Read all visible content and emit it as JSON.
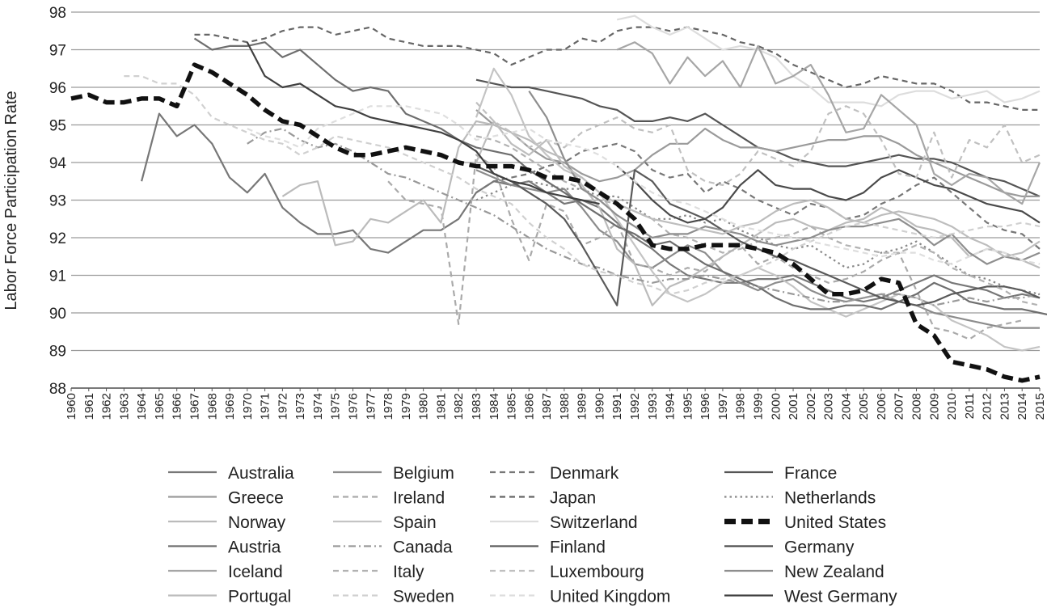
{
  "chart_data": {
    "type": "line",
    "title": "",
    "xlabel": "",
    "ylabel": "Labor Force Participation Rate",
    "xlim": [
      1960,
      2015
    ],
    "ylim": [
      88,
      98
    ],
    "y_ticks": [
      "88",
      "89",
      "90",
      "91",
      "92",
      "93",
      "94",
      "95",
      "96",
      "97",
      "98"
    ],
    "x_ticks": [
      "1960",
      "1961",
      "1962",
      "1963",
      "1964",
      "1965",
      "1966",
      "1967",
      "1968",
      "1969",
      "1970",
      "1971",
      "1972",
      "1973",
      "1974",
      "1975",
      "1976",
      "1977",
      "1978",
      "1979",
      "1980",
      "1981",
      "1982",
      "1983",
      "1984",
      "1985",
      "1986",
      "1987",
      "1988",
      "1989",
      "1990",
      "1991",
      "1992",
      "1993",
      "1994",
      "1995",
      "1996",
      "1997",
      "1998",
      "1999",
      "2000",
      "2001",
      "2002",
      "2003",
      "2004",
      "2005",
      "2006",
      "2007",
      "2008",
      "2009",
      "2010",
      "2011",
      "2012",
      "2013",
      "2014",
      "2015"
    ],
    "grid": true,
    "legend_position": "bottom",
    "series": [
      {
        "name": "Australia",
        "color": "#777777",
        "dash": "solid",
        "start": 1964,
        "values": [
          93.5,
          95.3,
          94.7,
          95.0,
          94.5,
          93.6,
          93.2,
          93.7,
          92.8,
          92.4,
          92.1,
          92.1,
          92.2,
          91.7,
          91.6,
          91.9,
          92.2,
          92.2,
          92.5,
          93.2,
          93.5,
          93.4,
          93.5,
          93.2,
          92.9,
          93.0,
          92.8,
          92.4,
          92.0,
          91.7,
          91.3,
          91.0,
          90.9,
          90.8,
          90.8,
          90.9,
          90.9,
          91.0,
          90.8,
          90.6,
          90.4,
          90.3,
          90.4,
          90.6,
          90.8,
          91.0,
          90.8,
          90.7,
          90.6,
          90.4,
          90.5,
          90.4
        ]
      },
      {
        "name": "Belgium",
        "color": "#8c8c8c",
        "dash": "solid",
        "start": 1983,
        "values": [
          93.8,
          93.6,
          93.4,
          93.3,
          93.2,
          93.3,
          92.8,
          92.2,
          91.9,
          91.3,
          91.2,
          91.5,
          91.8,
          91.6,
          91.1,
          90.8,
          90.6,
          90.8,
          90.9,
          90.6,
          90.4,
          90.3,
          90.4,
          90.5,
          90.3,
          90.2,
          90.0,
          89.9,
          89.8,
          89.7,
          89.6,
          89.6,
          89.6
        ]
      },
      {
        "name": "Denmark",
        "color": "#777777",
        "dash": "dash",
        "start": 1983,
        "values": [
          93.2,
          93.5,
          93.6,
          93.7,
          93.9,
          94.0,
          94.3,
          94.4,
          94.5,
          94.3,
          93.8,
          93.6,
          93.7,
          93.2,
          93.5,
          93.3,
          93.0,
          92.8,
          92.6,
          92.9,
          92.8,
          92.5,
          92.6,
          92.9,
          93.1,
          93.4,
          93.6,
          93.2,
          92.8,
          92.4,
          92.2,
          92.1,
          91.7
        ]
      },
      {
        "name": "France",
        "color": "#555555",
        "dash": "solid",
        "start": 1983,
        "values": [
          96.2,
          96.1,
          96.0,
          96.0,
          95.9,
          95.8,
          95.7,
          95.5,
          95.4,
          95.1,
          95.1,
          95.2,
          95.1,
          95.3,
          95.0,
          94.7,
          94.4,
          94.3,
          94.1,
          94.0,
          93.9,
          93.9,
          94.0,
          94.1,
          94.2,
          94.1,
          94.1,
          94.0,
          93.8,
          93.6,
          93.5,
          93.3,
          93.1
        ]
      },
      {
        "name": "Greece",
        "color": "#9a9a9a",
        "dash": "solid",
        "start": 1983,
        "values": [
          95.4,
          95.0,
          94.8,
          94.4,
          94.1,
          94.0,
          93.7,
          93.5,
          93.6,
          93.8,
          94.2,
          94.5,
          94.5,
          94.9,
          94.6,
          94.4,
          94.4,
          94.3,
          94.4,
          94.5,
          94.6,
          94.6,
          94.7,
          94.7,
          94.5,
          94.2,
          94.0,
          93.8,
          93.6,
          93.4,
          93.2,
          93.1,
          93.1
        ]
      },
      {
        "name": "Ireland",
        "color": "#aaaaaa",
        "dash": "dash",
        "start": 1978,
        "values": [
          93.5,
          93.0,
          92.9,
          92.8,
          89.7,
          94.2,
          93.9,
          92.5,
          91.4,
          92.9,
          92.7,
          91.8,
          92.0,
          92.4,
          91.3,
          91.2,
          91.0,
          91.2,
          91.1,
          91.5,
          91.8,
          91.3,
          91.5,
          91.2,
          91.0,
          90.8,
          90.9,
          91.1,
          91.4,
          91.6,
          90.6,
          89.6,
          89.5,
          89.3,
          89.6,
          89.7,
          89.8
        ]
      },
      {
        "name": "Japan",
        "color": "#666666",
        "dash": "dash",
        "start": 1967,
        "values": [
          97.4,
          97.4,
          97.3,
          97.2,
          97.3,
          97.5,
          97.6,
          97.6,
          97.4,
          97.5,
          97.6,
          97.3,
          97.2,
          97.1,
          97.1,
          97.1,
          97.0,
          96.9,
          96.6,
          96.8,
          97.0,
          97.0,
          97.3,
          97.2,
          97.5,
          97.6,
          97.6,
          97.5,
          97.6,
          97.5,
          97.4,
          97.2,
          97.1,
          96.9,
          96.6,
          96.4,
          96.2,
          96.0,
          96.1,
          96.3,
          96.2,
          96.1,
          96.1,
          95.9,
          95.6,
          95.6,
          95.5,
          95.4,
          95.4
        ]
      },
      {
        "name": "Netherlands",
        "color": "#888888",
        "dash": "dot",
        "start": 1983,
        "values": [
          93.0,
          93.2,
          93.4,
          93.5,
          93.4,
          93.3,
          93.3,
          93.1,
          93.1,
          92.8,
          92.5,
          92.5,
          92.6,
          92.4,
          92.5,
          92.2,
          92.0,
          91.8,
          91.7,
          91.8,
          91.5,
          91.2,
          91.3,
          91.6,
          91.7,
          91.9,
          91.6,
          91.3,
          91.0,
          90.9,
          90.7,
          90.6,
          90.5
        ]
      },
      {
        "name": "Norway",
        "color": "#bbbbbb",
        "dash": "solid",
        "start": 1972,
        "values": [
          93.1,
          93.4,
          93.5,
          91.8,
          91.9,
          92.5,
          92.4,
          92.7,
          93.0,
          92.4,
          94.4,
          95.1,
          95.0,
          94.8,
          94.6,
          94.3,
          94.1,
          93.4,
          92.8,
          91.7,
          91.3,
          90.2,
          90.7,
          90.9,
          91.2,
          91.5,
          91.8,
          92.1,
          92.4,
          92.5,
          92.3,
          92.2,
          92.4,
          92.5,
          92.8,
          92.6,
          92.3,
          92.2,
          92.0,
          91.5,
          91.7,
          91.6,
          91.4,
          91.2
        ]
      },
      {
        "name": "Spain",
        "color": "#c4c4c4",
        "dash": "solid",
        "start": 1983,
        "values": [
          95.2,
          96.5,
          95.8,
          94.7,
          94.2,
          93.8,
          93.6,
          93.2,
          92.5,
          91.8,
          91.1,
          90.5,
          90.3,
          90.5,
          90.8,
          91.0,
          91.2,
          91.0,
          90.7,
          90.3,
          90.1,
          89.9,
          90.1,
          90.3,
          90.5,
          90.4,
          90.2,
          89.8,
          89.6,
          89.4,
          89.1,
          89.0,
          89.1
        ]
      },
      {
        "name": "Switzerland",
        "color": "#dddddd",
        "dash": "solid",
        "start": 1991,
        "values": [
          97.8,
          97.9,
          97.6,
          97.4,
          97.6,
          97.3,
          97.0,
          97.1,
          97.0,
          96.8,
          96.3,
          96.0,
          95.6,
          95.6,
          95.6,
          95.5,
          95.8,
          95.9,
          95.9,
          95.7,
          95.8,
          95.9,
          95.6,
          95.7,
          95.9
        ]
      },
      {
        "name": "United States",
        "color": "#111111",
        "dash": "bigdash",
        "start": 1960,
        "values": [
          95.7,
          95.8,
          95.6,
          95.6,
          95.7,
          95.7,
          95.5,
          96.6,
          96.4,
          96.1,
          95.8,
          95.4,
          95.1,
          95.0,
          94.7,
          94.4,
          94.2,
          94.2,
          94.3,
          94.4,
          94.3,
          94.2,
          94.0,
          93.9,
          93.9,
          93.9,
          93.8,
          93.6,
          93.6,
          93.5,
          93.2,
          92.9,
          92.5,
          91.8,
          91.7,
          91.7,
          91.8,
          91.8,
          91.8,
          91.7,
          91.6,
          91.3,
          90.9,
          90.5,
          90.5,
          90.6,
          90.9,
          90.8,
          89.7,
          89.4,
          88.7,
          88.6,
          88.5,
          88.3,
          88.2,
          88.3
        ]
      },
      {
        "name": "Austria",
        "color": "#6e6e6e",
        "dash": "solid",
        "start": 1967,
        "values": [
          97.3,
          97.0,
          97.1,
          97.1,
          97.2,
          96.8,
          97.0,
          96.6,
          96.2,
          95.9,
          96.0,
          95.9,
          95.3,
          95.1,
          94.9,
          94.6,
          94.4,
          94.3,
          94.2,
          93.8,
          93.5,
          93.2,
          92.9,
          92.6,
          92.3,
          92.1,
          91.8,
          91.9,
          91.6,
          91.3,
          91.1,
          90.9,
          90.7,
          90.4,
          90.2,
          90.1,
          90.1,
          90.2,
          90.2,
          90.1,
          90.3,
          90.5,
          90.8,
          90.6,
          90.3,
          90.2,
          90.1,
          90.1,
          90.0,
          89.9,
          89.8,
          89.9,
          90.3
        ]
      },
      {
        "name": "Canada",
        "color": "#999999",
        "dash": "dashdot",
        "start": 1970,
        "values": [
          94.5,
          94.8,
          94.9,
          94.6,
          94.4,
          94.5,
          94.3,
          94.0,
          93.7,
          93.6,
          93.4,
          93.2,
          93.0,
          92.8,
          92.6,
          92.3,
          92.0,
          91.7,
          91.5,
          91.3,
          91.2,
          91.0,
          90.9,
          90.8,
          90.9,
          90.9,
          91.0,
          90.9,
          90.8,
          90.7,
          90.6,
          90.5,
          90.4,
          90.3,
          90.3,
          90.4,
          90.5,
          90.5,
          90.4,
          90.2,
          90.3,
          90.4,
          90.3,
          90.4,
          90.4,
          90.5
        ]
      },
      {
        "name": "Finland",
        "color": "#5a5a5a",
        "dash": "solid",
        "start": 1983,
        "values": [
          93.9,
          93.7,
          93.5,
          93.2,
          92.9,
          92.5,
          91.8,
          91.0,
          90.2,
          93.8,
          93.5,
          92.9,
          92.7,
          92.5,
          92.2,
          91.9,
          91.7,
          91.5,
          91.4,
          91.2,
          91.0,
          90.8,
          90.6,
          90.4,
          90.3,
          90.2,
          90.3,
          90.5,
          90.6,
          90.7,
          90.7,
          90.6,
          90.4
        ]
      },
      {
        "name": "Germany",
        "color": "#4a4a4a",
        "dash": "solid",
        "start": 1991,
        "values": [
          93.9,
          93.5,
          93.0,
          92.6,
          92.4,
          92.5,
          92.8,
          93.4,
          93.8,
          93.4,
          93.3,
          93.3,
          93.1,
          93.0,
          93.2,
          93.6,
          93.8,
          93.6,
          93.4,
          93.3,
          93.1,
          92.9,
          92.8,
          92.7,
          92.4
        ]
      },
      {
        "name": "Iceland",
        "color": "#a6a6a6",
        "dash": "solid",
        "start": 1991,
        "values": [
          97.0,
          97.2,
          96.9,
          96.1,
          96.8,
          96.3,
          96.7,
          96.0,
          97.1,
          96.1,
          96.3,
          96.6,
          95.8,
          94.8,
          94.9,
          95.8,
          95.4,
          95.0,
          93.7,
          93.4,
          93.7,
          93.6,
          93.2,
          92.9,
          94.0
        ]
      },
      {
        "name": "Italy",
        "color": "#b2b2b2",
        "dash": "dash",
        "start": 1983,
        "values": [
          94.7,
          94.6,
          94.4,
          94.1,
          93.8,
          93.5,
          93.3,
          93.0,
          92.9,
          92.7,
          92.5,
          92.1,
          92.0,
          91.8,
          91.6,
          91.7,
          91.9,
          92.0,
          92.1,
          92.3,
          92.0,
          91.8,
          91.7,
          91.6,
          91.6,
          91.8,
          91.6,
          91.2,
          91.0,
          90.8,
          90.6,
          90.3,
          90.2
        ]
      },
      {
        "name": "Luxembourg",
        "color": "#c0c0c0",
        "dash": "dash",
        "start": 1983,
        "values": [
          95.6,
          95.1,
          94.8,
          94.4,
          94.6,
          94.4,
          94.8,
          95.0,
          95.2,
          94.9,
          94.8,
          95.0,
          93.8,
          93.5,
          93.4,
          93.7,
          94.3,
          94.1,
          93.9,
          94.3,
          95.3,
          95.5,
          95.3,
          94.6,
          93.7,
          93.6,
          94.8,
          93.6,
          94.6,
          94.4,
          95.0,
          94.0,
          94.2
        ]
      },
      {
        "name": "New Zealand",
        "color": "#8e8e8e",
        "dash": "solid",
        "start": 1986,
        "values": [
          95.9,
          95.2,
          94.1,
          93.3,
          93.0,
          92.6,
          92.3,
          92.0,
          92.1,
          92.1,
          92.3,
          92.2,
          92.1,
          91.9,
          91.8,
          91.9,
          92.0,
          92.2,
          92.3,
          92.3,
          92.4,
          92.5,
          92.2,
          91.8,
          92.1,
          91.6,
          91.3,
          91.5,
          91.4,
          91.6
        ]
      },
      {
        "name": "Portugal",
        "color": "#bdbdbd",
        "dash": "solid",
        "start": 1983,
        "values": [
          94.0,
          95.1,
          94.5,
          94.2,
          94.6,
          93.9,
          93.6,
          93.2,
          92.9,
          92.7,
          92.5,
          92.4,
          92.3,
          92.2,
          92.1,
          92.3,
          92.4,
          92.7,
          92.9,
          93.0,
          92.8,
          92.5,
          92.4,
          92.6,
          92.7,
          92.6,
          92.5,
          92.3,
          92.0,
          91.8,
          91.5,
          91.6,
          91.9
        ]
      },
      {
        "name": "Sweden",
        "color": "#d0d0d0",
        "dash": "dash",
        "start": 1963,
        "values": [
          96.3,
          96.3,
          96.1,
          96.1,
          95.8,
          95.2,
          95.0,
          94.8,
          94.6,
          94.5,
          94.2,
          94.4,
          94.7,
          94.6,
          94.5,
          94.4,
          94.2,
          94.0,
          93.8,
          93.6,
          93.3,
          93.1,
          92.9,
          92.4,
          92.0,
          91.7,
          91.3,
          91.1,
          91.0,
          90.8,
          90.7,
          90.5,
          90.6,
          90.8,
          90.9,
          91.0,
          91.2,
          91.4,
          91.7,
          91.9,
          92.1,
          92.3,
          92.4,
          92.3,
          92.2,
          92.1,
          92.0,
          92.1,
          92.2,
          92.3,
          92.3,
          92.4,
          92.3
        ]
      },
      {
        "name": "United Kingdom",
        "color": "#dedede",
        "dash": "dash",
        "start": 1970,
        "values": [
          94.9,
          94.7,
          94.6,
          94.4,
          94.9,
          95.1,
          95.3,
          95.5,
          95.5,
          95.5,
          95.4,
          95.3,
          95.0,
          94.6,
          94.7,
          94.8,
          94.9,
          94.6,
          94.5,
          94.4,
          94.2,
          93.9,
          93.5,
          93.2,
          93.0,
          92.9,
          92.7,
          92.5,
          92.3,
          92.2,
          92.1,
          92.0,
          91.9,
          91.8,
          91.7,
          91.6,
          91.5,
          91.6,
          91.6,
          91.4,
          91.3,
          91.5,
          91.7,
          91.6,
          91.4,
          91.3
        ]
      },
      {
        "name": "West Germany",
        "color": "#404040",
        "dash": "solid",
        "start": 1970,
        "values": [
          97.2,
          96.3,
          96.0,
          96.1,
          95.8,
          95.5,
          95.4,
          95.2,
          95.1,
          95.0,
          94.9,
          94.8,
          94.6,
          94.3,
          93.7,
          93.5,
          93.4,
          93.2,
          93.1,
          93.0,
          92.9
        ]
      }
    ]
  }
}
